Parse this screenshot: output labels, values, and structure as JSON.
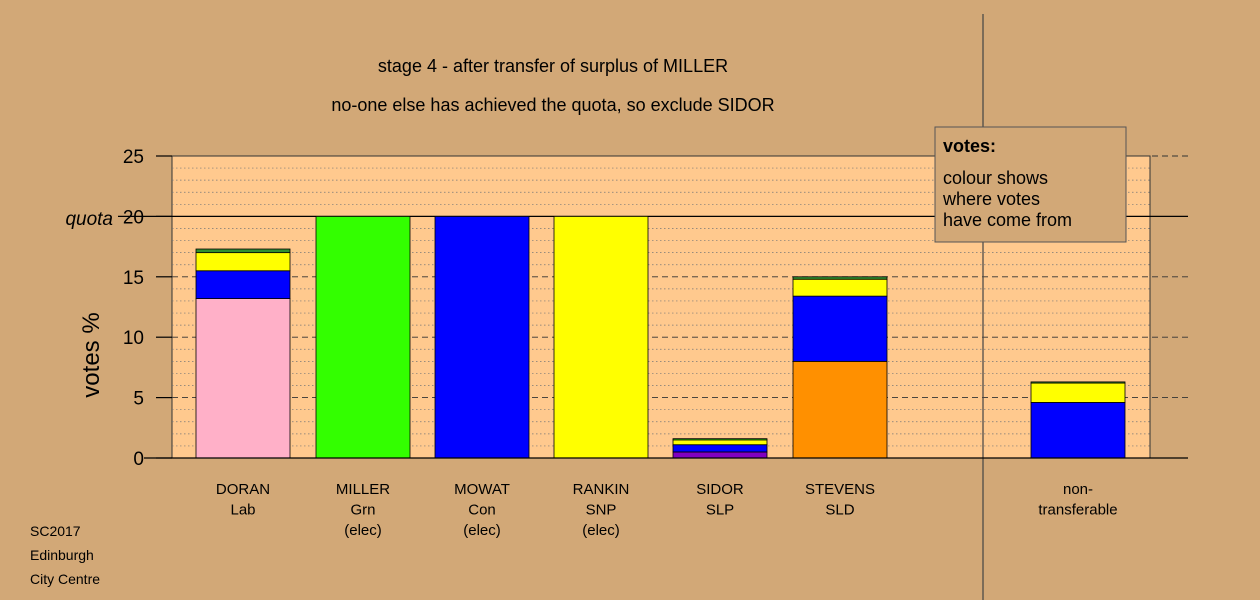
{
  "title_line1": "stage 4 - after transfer of surplus of MILLER",
  "title_line2": "no-one else has achieved the quota, so exclude SIDOR",
  "ylabel": "votes %",
  "quota_label": "quota",
  "footer": [
    "SC2017",
    "Edinburgh",
    "City Centre"
  ],
  "legend": {
    "heading": "votes:",
    "lines": [
      "colour shows",
      "where votes",
      "have come from"
    ]
  },
  "colors": {
    "background": "#d2a877",
    "plot_area": "#ffc98e",
    "pink": "#ffb0c8",
    "blue": "#0000ff",
    "yellow": "#ffff00",
    "green": "#33ff00",
    "darkgreen": "#2f8f2f",
    "orange": "#ff9000",
    "purple": "#8000c0"
  },
  "chart_data": {
    "type": "bar",
    "stacked": true,
    "ylim": [
      0,
      25
    ],
    "yticks": [
      0,
      5,
      10,
      15,
      20,
      25
    ],
    "quota": 20,
    "grid": true,
    "categories": [
      {
        "lines": [
          "DORAN",
          "Lab"
        ],
        "segments": [
          {
            "color": "pink",
            "value": 13.2
          },
          {
            "color": "blue",
            "value": 2.3
          },
          {
            "color": "yellow",
            "value": 1.5
          },
          {
            "color": "darkgreen",
            "value": 0.3
          }
        ]
      },
      {
        "lines": [
          "MILLER",
          "Grn",
          "(elec)"
        ],
        "segments": [
          {
            "color": "green",
            "value": 20
          }
        ]
      },
      {
        "lines": [
          "MOWAT",
          "Con",
          "(elec)"
        ],
        "segments": [
          {
            "color": "blue",
            "value": 20
          }
        ]
      },
      {
        "lines": [
          "RANKIN",
          "SNP",
          "(elec)"
        ],
        "segments": [
          {
            "color": "yellow",
            "value": 20
          }
        ]
      },
      {
        "lines": [
          "SIDOR",
          "SLP"
        ],
        "segments": [
          {
            "color": "purple",
            "value": 0.5
          },
          {
            "color": "blue",
            "value": 0.6
          },
          {
            "color": "yellow",
            "value": 0.4
          },
          {
            "color": "green",
            "value": 0.1
          }
        ]
      },
      {
        "lines": [
          "STEVENS",
          "SLD"
        ],
        "segments": [
          {
            "color": "orange",
            "value": 8.0
          },
          {
            "color": "blue",
            "value": 5.4
          },
          {
            "color": "yellow",
            "value": 1.4
          },
          {
            "color": "darkgreen",
            "value": 0.2
          }
        ]
      },
      {
        "lines": [
          "non-",
          "transferable"
        ],
        "segments": [
          {
            "color": "blue",
            "value": 4.6
          },
          {
            "color": "yellow",
            "value": 1.6
          },
          {
            "color": "darkgreen",
            "value": 0.1
          }
        ]
      }
    ]
  }
}
